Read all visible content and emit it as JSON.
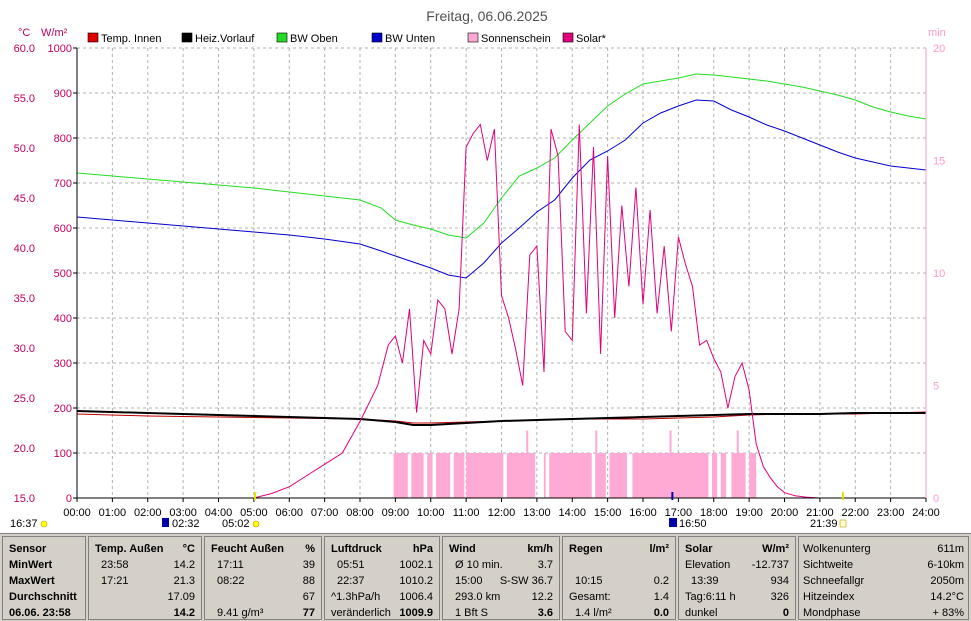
{
  "title": "Freitag, 06.06.2025",
  "units": {
    "left_temp": "°C",
    "left_solar": "W/m²",
    "right": "min"
  },
  "legend": [
    {
      "label": "Temp. Innen",
      "color": "#e00000"
    },
    {
      "label": "Heiz.Vorlauf",
      "color": "#000000"
    },
    {
      "label": "BW Oben",
      "color": "#22dd22"
    },
    {
      "label": "BW Unten",
      "color": "#0000cc"
    },
    {
      "label": "Sonnenschein",
      "color": "#ffaad4"
    },
    {
      "label": "Solar*",
      "color": "#e0007a"
    }
  ],
  "sun_marks": {
    "sunrise_left": "16:37",
    "sunrise_mark": "02:32",
    "sunrise": "05:02",
    "noon_mark": "16:50",
    "sunset": "21:39"
  },
  "chart_data": {
    "type": "line",
    "x_ticks": [
      "00:00",
      "01:00",
      "02:00",
      "03:00",
      "04:00",
      "05:00",
      "06:00",
      "07:00",
      "08:00",
      "09:00",
      "10:00",
      "11:00",
      "12:00",
      "13:00",
      "14:00",
      "15:00",
      "16:00",
      "17:00",
      "18:00",
      "19:00",
      "20:00",
      "21:00",
      "22:00",
      "23:00",
      "24:00"
    ],
    "y_left_temp": {
      "range": [
        15,
        60
      ],
      "ticks": [
        "15.0",
        "20.0",
        "25.0",
        "30.0",
        "35.0",
        "40.0",
        "45.0",
        "50.0",
        "55.0",
        "60.0"
      ]
    },
    "y_left_solar": {
      "range": [
        0,
        1000
      ],
      "ticks": [
        "0",
        "100",
        "200",
        "300",
        "400",
        "500",
        "600",
        "700",
        "800",
        "900",
        "1000"
      ]
    },
    "y_right": {
      "range": [
        0,
        20
      ],
      "ticks": [
        "0",
        "5",
        "10",
        "15",
        "20"
      ]
    },
    "grid": true,
    "series": [
      {
        "name": "Temp. Innen",
        "axis": "temp",
        "color": "#c00000",
        "x": [
          0,
          2,
          4,
          6,
          8,
          9,
          9.5,
          10,
          11,
          12,
          13,
          14,
          15,
          16,
          17,
          18,
          19,
          20,
          21,
          22,
          23,
          24
        ],
        "y": [
          23.4,
          23.2,
          23.1,
          23.0,
          22.9,
          22.7,
          22.5,
          22.5,
          22.6,
          22.7,
          22.8,
          22.9,
          22.9,
          22.9,
          23.0,
          23.1,
          23.3,
          23.4,
          23.4,
          23.4,
          23.5,
          23.6
        ]
      },
      {
        "name": "Heiz.Vorlauf",
        "axis": "temp",
        "color": "#000000",
        "x": [
          0,
          2,
          4,
          6,
          8,
          9,
          9.5,
          10,
          11,
          12,
          13,
          14,
          15,
          16,
          17,
          18,
          19,
          20,
          21,
          22,
          23,
          24
        ],
        "y": [
          23.7,
          23.5,
          23.3,
          23.1,
          22.9,
          22.6,
          22.3,
          22.3,
          22.5,
          22.7,
          22.8,
          22.9,
          23.0,
          23.1,
          23.2,
          23.3,
          23.4,
          23.4,
          23.4,
          23.5,
          23.5,
          23.5
        ]
      },
      {
        "name": "BW Oben",
        "axis": "temp",
        "color": "#22dd22",
        "x": [
          0,
          1,
          2,
          3,
          4,
          5,
          6,
          7,
          8,
          8.6,
          9,
          9.5,
          10,
          10.5,
          11,
          11.5,
          12,
          12.5,
          13,
          13.5,
          14,
          14.5,
          15,
          15.5,
          16,
          16.5,
          17,
          17.5,
          18,
          18.5,
          19,
          19.5,
          20,
          20.5,
          21,
          21.5,
          22,
          22.5,
          23,
          23.5,
          24
        ],
        "y": [
          47.5,
          47.2,
          46.9,
          46.6,
          46.3,
          46.0,
          45.6,
          45.2,
          44.8,
          44.0,
          42.8,
          42.3,
          41.9,
          41.3,
          41.0,
          42.5,
          45.0,
          47.2,
          48.0,
          49.0,
          50.8,
          52.5,
          54.2,
          55.4,
          56.4,
          56.7,
          57.0,
          57.4,
          57.3,
          57.1,
          56.9,
          56.7,
          56.4,
          56.1,
          55.7,
          55.3,
          54.8,
          54.1,
          53.6,
          53.2,
          52.9
        ]
      },
      {
        "name": "BW Unten",
        "axis": "temp",
        "color": "#0000cc",
        "x": [
          0,
          1,
          2,
          3,
          4,
          5,
          6,
          7,
          8,
          8.6,
          9,
          9.5,
          10,
          10.5,
          11,
          11.5,
          12,
          12.5,
          13,
          13.5,
          14,
          14.5,
          15,
          15.5,
          16,
          16.5,
          17,
          17.5,
          18,
          18.5,
          19,
          19.5,
          20,
          20.5,
          21,
          21.5,
          22,
          22.5,
          23,
          23.5,
          24
        ],
        "y": [
          43.1,
          42.8,
          42.5,
          42.2,
          41.9,
          41.6,
          41.3,
          40.9,
          40.4,
          39.7,
          39.2,
          38.6,
          38.0,
          37.3,
          37.0,
          38.5,
          40.5,
          42.0,
          43.6,
          44.8,
          47.0,
          48.8,
          49.7,
          50.8,
          52.5,
          53.5,
          54.2,
          54.8,
          54.7,
          53.8,
          53.1,
          52.3,
          51.7,
          51.0,
          50.3,
          49.6,
          49.0,
          48.6,
          48.2,
          48.0,
          47.8
        ]
      },
      {
        "name": "Solar*",
        "axis": "solar",
        "color": "#e0007a",
        "x": [
          0,
          5,
          5.5,
          6,
          6.5,
          7,
          7.5,
          8,
          8.5,
          8.8,
          9,
          9.2,
          9.4,
          9.6,
          9.8,
          10,
          10.2,
          10.4,
          10.6,
          10.8,
          11,
          11.2,
          11.4,
          11.6,
          11.8,
          12,
          12.2,
          12.4,
          12.6,
          12.8,
          13,
          13.2,
          13.4,
          13.6,
          13.8,
          14,
          14.2,
          14.4,
          14.6,
          14.8,
          15,
          15.2,
          15.4,
          15.6,
          15.8,
          16,
          16.2,
          16.4,
          16.6,
          16.8,
          17,
          17.2,
          17.4,
          17.6,
          17.8,
          18,
          18.2,
          18.4,
          18.6,
          18.8,
          19,
          19.2,
          19.4,
          19.6,
          19.8,
          20,
          20.3,
          20.6,
          21,
          21.3,
          21.6,
          22,
          24
        ],
        "y": [
          0,
          0,
          10,
          25,
          50,
          75,
          100,
          170,
          250,
          340,
          360,
          300,
          420,
          190,
          350,
          320,
          440,
          420,
          320,
          420,
          780,
          810,
          830,
          750,
          820,
          450,
          400,
          330,
          250,
          540,
          560,
          280,
          820,
          760,
          370,
          350,
          830,
          410,
          780,
          320,
          760,
          400,
          650,
          470,
          690,
          430,
          640,
          410,
          560,
          370,
          580,
          520,
          470,
          340,
          350,
          310,
          280,
          200,
          270,
          300,
          240,
          120,
          70,
          45,
          25,
          12,
          5,
          2,
          0,
          0,
          0,
          0,
          0
        ]
      }
    ],
    "sunshine": {
      "name": "Sonnenschein",
      "axis": "solar",
      "color": "#ffaad4",
      "level": 100,
      "intervals": [
        [
          8.95,
          9.35
        ],
        [
          9.45,
          9.8
        ],
        [
          9.9,
          10.05
        ],
        [
          10.15,
          10.55
        ],
        [
          10.65,
          10.95
        ],
        [
          11.0,
          12.05
        ],
        [
          12.15,
          12.95
        ],
        [
          13.2,
          13.25
        ],
        [
          13.35,
          14.55
        ],
        [
          14.65,
          14.95
        ],
        [
          15.05,
          15.55
        ],
        [
          15.7,
          17.85
        ],
        [
          17.95,
          18.1
        ],
        [
          18.2,
          18.35
        ],
        [
          18.5,
          18.9
        ],
        [
          19.0,
          19.2
        ]
      ],
      "peaks": [
        [
          12.7,
          150
        ],
        [
          14.65,
          150
        ],
        [
          16.75,
          150
        ],
        [
          18.65,
          150
        ]
      ]
    }
  },
  "panel": {
    "sensor": {
      "title": "Sensor",
      "rows": [
        "MinWert",
        "MaxWert",
        "Durchschnitt",
        "06.06. 23:58"
      ]
    },
    "temp": {
      "title": "Temp. Außen",
      "unit": "°C",
      "rows": [
        [
          "23:58",
          "14.2"
        ],
        [
          "17:21",
          "21.3"
        ],
        [
          "",
          "17.09"
        ],
        [
          "",
          "14.2"
        ]
      ]
    },
    "humidity": {
      "title": "Feucht Außen",
      "unit": "%",
      "rows": [
        [
          "17:11",
          "39"
        ],
        [
          "08:22",
          "88"
        ],
        [
          "",
          "67"
        ],
        [
          "9.41 g/m³",
          "77"
        ]
      ]
    },
    "pressure": {
      "title": "Luftdruck",
      "unit": "hPa",
      "rows": [
        [
          "05:51",
          "1002.1"
        ],
        [
          "22:37",
          "1010.2"
        ],
        [
          "^1.3hPa/h",
          "1006.4"
        ],
        [
          "veränderlich",
          "1009.9"
        ]
      ]
    },
    "wind": {
      "title": "Wind",
      "unit": "km/h",
      "rows": [
        [
          "Ø 10 min.",
          "3.7"
        ],
        [
          "15:00",
          "S-SW 36.7"
        ],
        [
          "293.0 km",
          "12.2"
        ],
        [
          "1 Bft S",
          "3.6"
        ]
      ]
    },
    "rain": {
      "title": "Regen",
      "unit": "l/m²",
      "rows": [
        [
          "",
          ""
        ],
        [
          "10:15",
          "0.2"
        ],
        [
          "Gesamt:",
          "1.4"
        ],
        [
          "1.4 l/m²",
          "0.0"
        ]
      ]
    },
    "solar": {
      "title": "Solar",
      "unit": "W/m²",
      "rows": [
        [
          "Elevation",
          "-12.737"
        ],
        [
          "13:39",
          "934"
        ],
        [
          "Tag:6:11 h",
          "326"
        ],
        [
          "dunkel",
          "0"
        ]
      ]
    },
    "extra": {
      "rows": [
        [
          "Wolkenunterg",
          "611m"
        ],
        [
          "Sichtweite",
          "6-10km"
        ],
        [
          "Schneefallgr",
          "2050m"
        ],
        [
          "Hitzeindex",
          "14.2°C"
        ],
        [
          "Mondphase",
          "+ 83%"
        ]
      ]
    }
  }
}
